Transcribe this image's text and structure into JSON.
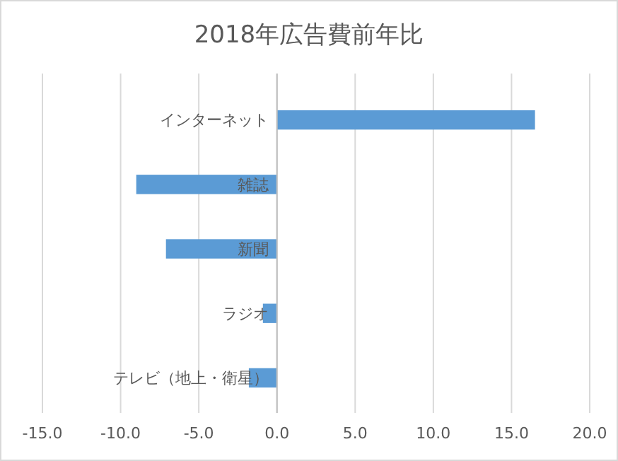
{
  "chart_data": {
    "type": "bar",
    "orientation": "horizontal",
    "title": "2018年広告費前年比",
    "categories": [
      "インターネット",
      "雑誌",
      "新聞",
      "ラジオ",
      "テレビ（地上・衛星）"
    ],
    "values": [
      16.5,
      -9.0,
      -7.1,
      -0.9,
      -1.8
    ],
    "color": "#5b9bd5",
    "xlim": [
      -15,
      20
    ],
    "xticks": [
      {
        "value": -15,
        "label": "-15.0"
      },
      {
        "value": -10,
        "label": "-10.0"
      },
      {
        "value": -5,
        "label": "-5.0"
      },
      {
        "value": 0,
        "label": "0.0"
      },
      {
        "value": 5,
        "label": "5.0"
      },
      {
        "value": 10,
        "label": "10.0"
      },
      {
        "value": 15,
        "label": "15.0"
      },
      {
        "value": 20,
        "label": "20.0"
      }
    ],
    "grid": "x"
  }
}
